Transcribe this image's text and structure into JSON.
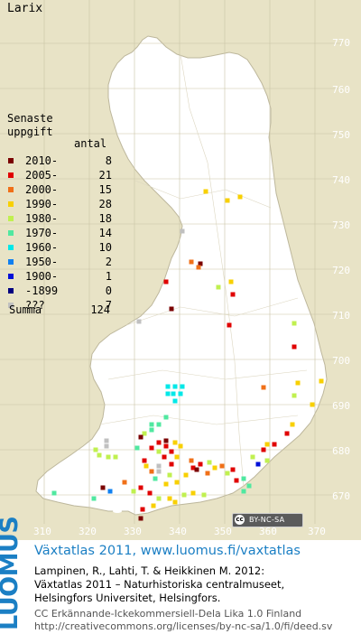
{
  "map": {
    "species": "Larix",
    "colors": {
      "background": "#e8e3c6",
      "land": "#ffffff",
      "grid": "#c9c3a6",
      "border": "#bdb79c"
    },
    "y_axis_labels": [
      "770",
      "760",
      "750",
      "740",
      "730",
      "720",
      "710",
      "700",
      "690",
      "680",
      "670"
    ],
    "x_axis_labels": [
      "310",
      "320",
      "330",
      "340",
      "350",
      "360",
      "370"
    ],
    "license_badge": {
      "symbol": "cc",
      "text": "BY-NC-SA"
    }
  },
  "legend": {
    "title_line1": "Senaste",
    "title_line2": "uppgift",
    "count_header": "antal",
    "items": [
      {
        "label": "2010-",
        "count": "8",
        "color": "#7a0000"
      },
      {
        "label": "2005-",
        "count": "21",
        "color": "#e00000"
      },
      {
        "label": "2000-",
        "count": "15",
        "color": "#f07018"
      },
      {
        "label": "1990-",
        "count": "28",
        "color": "#f8d000"
      },
      {
        "label": "1980-",
        "count": "18",
        "color": "#c0f050"
      },
      {
        "label": "1970-",
        "count": "14",
        "color": "#50e8a0"
      },
      {
        "label": "1960-",
        "count": "10",
        "color": "#00e8e8"
      },
      {
        "label": "1950-",
        "count": "2",
        "color": "#1080f0"
      },
      {
        "label": "1900-",
        "count": "1",
        "color": "#0010d8"
      },
      {
        "label": "-1899",
        "count": "0",
        "color": "#000080"
      },
      {
        "label": "???",
        "count": "7",
        "color": "#c0c0c0"
      }
    ],
    "summa_label": "Summa",
    "summa_count": "124"
  },
  "footer": {
    "logo_text": "LUOMUS",
    "link_text": "Växtatlas 2011, www.luomus.fi/vaxtatlas",
    "citation_line1": "Lampinen, R., Lahti, T. & Heikkinen M. 2012:",
    "citation_line2": "Växtatlas 2011 – Naturhistoriska centralmuseet,",
    "citation_line3": "Helsingfors Universitet, Helsingfors.",
    "license_line1": "CC Erkännande-Ickekommersiell-Dela Lika 1.0 Finland",
    "license_line2": "http://creativecommons.org/licenses/by-nc-sa/1.0/fi/deed.sv",
    "colors": {
      "link": "#1b7fc4",
      "logo": "#1b7fc4",
      "license": "#555555"
    }
  }
}
